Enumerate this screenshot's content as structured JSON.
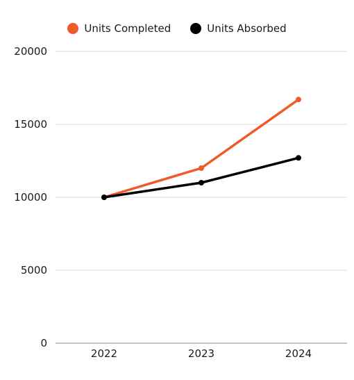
{
  "chart_data": {
    "type": "line",
    "categories": [
      "2022",
      "2023",
      "2024"
    ],
    "series": [
      {
        "name": "Units Completed",
        "color": "#f05a28",
        "values": [
          10000,
          12000,
          16700
        ]
      },
      {
        "name": "Units Absorbed",
        "color": "#000000",
        "values": [
          10000,
          11000,
          12700
        ]
      }
    ],
    "ylim": [
      0,
      20000
    ],
    "yticks": [
      0,
      5000,
      10000,
      15000,
      20000
    ],
    "ytick_labels": [
      "0",
      "5000",
      "10000",
      "15000",
      "20000"
    ],
    "grid": true,
    "legend_position": "top-center",
    "xlabel": "",
    "ylabel": "",
    "title": ""
  }
}
